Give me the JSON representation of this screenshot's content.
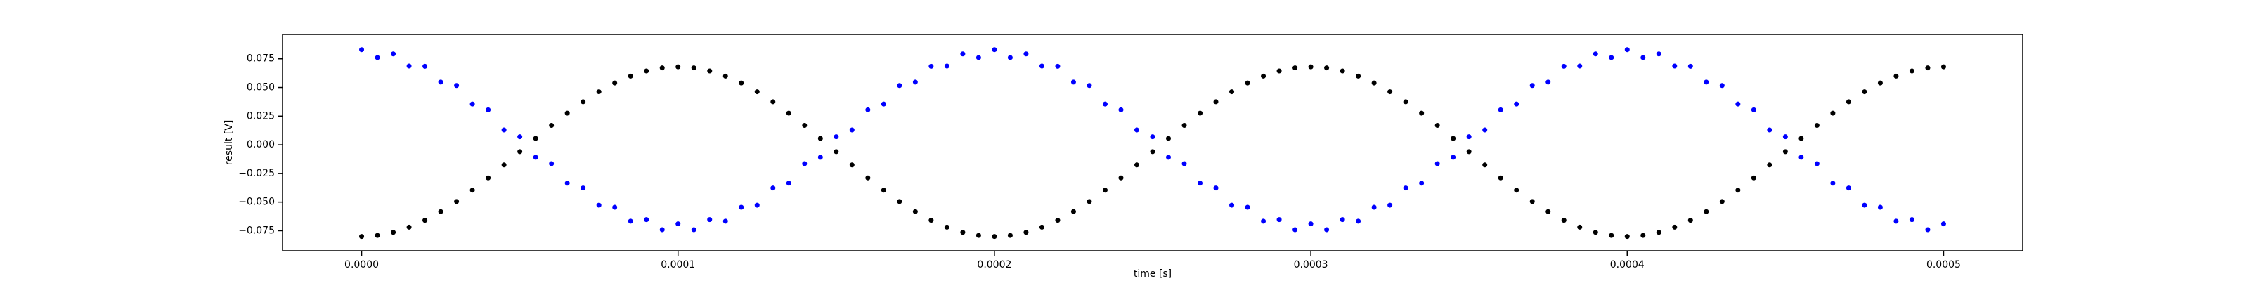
{
  "chart_data": {
    "type": "scatter",
    "xlabel": "time [s]",
    "ylabel": "result [V]",
    "x": [
      0,
      5e-06,
      1e-05,
      1.5e-05,
      2e-05,
      2.5e-05,
      3e-05,
      3.5e-05,
      4e-05,
      4.5e-05,
      5e-05,
      5.5e-05,
      6e-05,
      6.5e-05,
      7e-05,
      7.5e-05,
      8e-05,
      8.5e-05,
      9e-05,
      9.5e-05,
      0.0001,
      0.000105,
      0.00011,
      0.000115,
      0.00012,
      0.000125,
      0.00013,
      0.000135,
      0.00014,
      0.000145,
      0.00015,
      0.000155,
      0.00016,
      0.000165,
      0.00017,
      0.000175,
      0.00018,
      0.000185,
      0.00019,
      0.000195,
      0.0002,
      0.000205,
      0.00021,
      0.000215,
      0.00022,
      0.000225,
      0.00023,
      0.000235,
      0.00024,
      0.000245,
      0.00025,
      0.000255,
      0.00026,
      0.000265,
      0.00027,
      0.000275,
      0.00028,
      0.000285,
      0.00029,
      0.000295,
      0.0003,
      0.000305,
      0.00031,
      0.000315,
      0.00032,
      0.000325,
      0.00033,
      0.000335,
      0.00034,
      0.000345,
      0.00035,
      0.000355,
      0.00036,
      0.000365,
      0.00037,
      0.000375,
      0.00038,
      0.000385,
      0.00039,
      0.000395,
      0.0004,
      0.000405,
      0.00041,
      0.000415,
      0.00042,
      0.000425,
      0.00043,
      0.000435,
      0.00044,
      0.000445,
      0.00045,
      0.000455,
      0.00046,
      0.000465,
      0.00047,
      0.000475,
      0.00048,
      0.000485,
      0.00049,
      0.000495,
      0.0005
    ],
    "series": [
      {
        "color": "#0000ff",
        "values": [
          0.083,
          0.0761,
          0.0793,
          0.0687,
          0.0685,
          0.0547,
          0.0517,
          0.0355,
          0.0305,
          0.0129,
          0.007,
          -0.0109,
          -0.0165,
          -0.0335,
          -0.0377,
          -0.0527,
          -0.0545,
          -0.0667,
          -0.0653,
          -0.0741,
          -0.069,
          -0.0741,
          -0.0653,
          -0.0667,
          -0.0545,
          -0.0527,
          -0.0377,
          -0.0335,
          -0.0165,
          -0.0109,
          0.007,
          0.0129,
          0.0305,
          0.0355,
          0.0517,
          0.0547,
          0.0685,
          0.0687,
          0.0793,
          0.0761,
          0.083,
          0.0761,
          0.0793,
          0.0687,
          0.0685,
          0.0547,
          0.0517,
          0.0355,
          0.0305,
          0.0129,
          0.007,
          -0.0109,
          -0.0165,
          -0.0335,
          -0.0377,
          -0.0527,
          -0.0545,
          -0.0667,
          -0.0653,
          -0.0741,
          -0.069,
          -0.0741,
          -0.0653,
          -0.0667,
          -0.0545,
          -0.0527,
          -0.0377,
          -0.0335,
          -0.0165,
          -0.0109,
          0.007,
          0.0129,
          0.0305,
          0.0355,
          0.0517,
          0.0547,
          0.0685,
          0.0687,
          0.0793,
          0.0761,
          0.083,
          0.0761,
          0.0793,
          0.0687,
          0.0685,
          0.0547,
          0.0517,
          0.0355,
          0.0305,
          0.0129,
          0.007,
          -0.0109,
          -0.0165,
          -0.0335,
          -0.0377,
          -0.0527,
          -0.0545,
          -0.0667,
          -0.0653,
          -0.0741,
          -0.069
        ]
      },
      {
        "color": "#000000",
        "values": [
          -0.08,
          -0.0791,
          -0.0764,
          -0.0719,
          -0.0659,
          -0.0583,
          -0.0495,
          -0.0396,
          -0.0289,
          -0.0176,
          -0.006,
          0.0056,
          0.0169,
          0.0276,
          0.0375,
          0.0463,
          0.0539,
          0.0599,
          0.0644,
          0.0671,
          0.068,
          0.0671,
          0.0644,
          0.0599,
          0.0539,
          0.0463,
          0.0375,
          0.0276,
          0.0169,
          0.0056,
          -0.006,
          -0.0176,
          -0.0289,
          -0.0396,
          -0.0495,
          -0.0583,
          -0.0659,
          -0.0719,
          -0.0764,
          -0.0791,
          -0.08,
          -0.0791,
          -0.0764,
          -0.0719,
          -0.0659,
          -0.0583,
          -0.0495,
          -0.0396,
          -0.0289,
          -0.0176,
          -0.006,
          0.0056,
          0.0169,
          0.0276,
          0.0375,
          0.0463,
          0.0539,
          0.0599,
          0.0644,
          0.0671,
          0.068,
          0.0671,
          0.0644,
          0.0599,
          0.0539,
          0.0463,
          0.0375,
          0.0276,
          0.0169,
          0.0056,
          -0.006,
          -0.0176,
          -0.0289,
          -0.0396,
          -0.0495,
          -0.0583,
          -0.0659,
          -0.0719,
          -0.0764,
          -0.0791,
          -0.08,
          -0.0791,
          -0.0764,
          -0.0719,
          -0.0659,
          -0.0583,
          -0.0495,
          -0.0396,
          -0.0289,
          -0.0176,
          -0.006,
          0.0056,
          0.0169,
          0.0276,
          0.0375,
          0.0463,
          0.0539,
          0.0599,
          0.0644,
          0.0671,
          0.068
        ]
      }
    ],
    "xlim": [
      -2.5e-05,
      0.000525
    ],
    "xticks": [
      {
        "value": 0,
        "label": "0.0000"
      },
      {
        "value": 0.0001,
        "label": "0.0001"
      },
      {
        "value": 0.0002,
        "label": "0.0002"
      },
      {
        "value": 0.0003,
        "label": "0.0003"
      },
      {
        "value": 0.0004,
        "label": "0.0004"
      },
      {
        "value": 0.0005,
        "label": "0.0005"
      }
    ],
    "ylim": [
      -0.0925,
      0.0963
    ],
    "yticks": [
      {
        "value": -0.075,
        "label": "−0.075"
      },
      {
        "value": -0.05,
        "label": "−0.050"
      },
      {
        "value": -0.025,
        "label": "−0.025"
      },
      {
        "value": 0,
        "label": "0.000"
      },
      {
        "value": 0.025,
        "label": "0.025"
      },
      {
        "value": 0.05,
        "label": "0.050"
      },
      {
        "value": 0.075,
        "label": "0.075"
      }
    ],
    "grid": false
  }
}
